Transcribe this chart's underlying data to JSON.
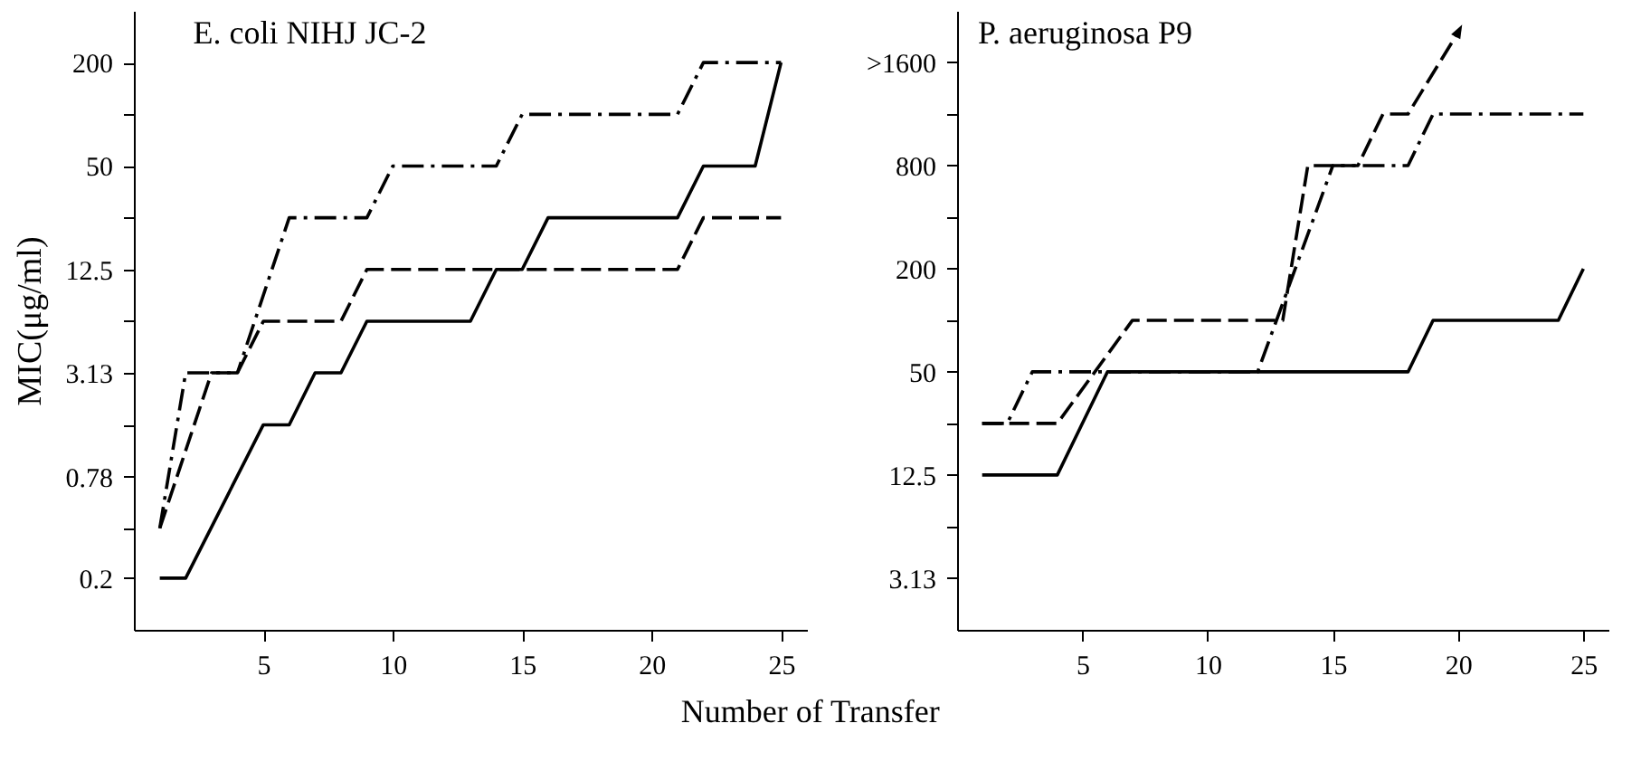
{
  "chart_data": [
    {
      "type": "line",
      "title": "E. coli  NIHJ JC-2",
      "ylabel": "MIC(μg/ml)",
      "xlabel": "Number of Transfer",
      "log": "y",
      "xlim": [
        0,
        26
      ],
      "xticks": [
        5,
        10,
        15,
        20,
        25
      ],
      "ylim": [
        0.1,
        400
      ],
      "yticks": [
        0.2,
        {
          "value": 0.39,
          "label": null
        },
        0.78,
        {
          "value": 1.56,
          "label": null
        },
        3.13,
        {
          "value": 6.25,
          "label": null
        },
        12.5,
        {
          "value": 25,
          "label": null
        },
        50,
        {
          "value": 100,
          "label": null
        },
        200
      ],
      "series": [
        {
          "color": "#000000",
          "line_style": "solid",
          "x": [
            1,
            2,
            5,
            6,
            7,
            8,
            9,
            13,
            14,
            15,
            16,
            21,
            22,
            24,
            25
          ],
          "values": [
            0.2,
            0.2,
            1.56,
            1.56,
            3.13,
            3.13,
            6.25,
            6.25,
            12.5,
            12.5,
            25,
            25,
            50,
            50,
            200
          ]
        },
        {
          "color": "#000000",
          "line_style": "dashed",
          "x": [
            1,
            3,
            4,
            5,
            8,
            9,
            21,
            22,
            25
          ],
          "values": [
            0.39,
            3.13,
            3.13,
            6.25,
            6.25,
            12.5,
            12.5,
            25,
            25
          ]
        },
        {
          "color": "#000000",
          "line_style": "dashdot",
          "x": [
            1,
            2,
            4,
            6,
            9,
            10,
            14,
            15,
            21,
            22,
            25
          ],
          "values": [
            0.39,
            3.13,
            3.13,
            25,
            25,
            50,
            50,
            100,
            100,
            200,
            200
          ]
        }
      ]
    },
    {
      "type": "line",
      "title": "P. aeruginosa  P9",
      "log": "y",
      "xlim": [
        0,
        26
      ],
      "xticks": [
        5,
        10,
        15,
        20,
        25
      ],
      "ylim": [
        1.56,
        6400
      ],
      "yticks": [
        3.13,
        {
          "value": 6.25,
          "label": null
        },
        12.5,
        {
          "value": 25,
          "label": null
        },
        50,
        {
          "value": 100,
          "label": null
        },
        200,
        {
          "value": 400,
          "label": null
        },
        800,
        {
          "value": 1600,
          "label": null
        },
        {
          "value": 3200,
          "label": ">1600"
        }
      ],
      "series": [
        {
          "color": "#000000",
          "line_style": "solid",
          "x": [
            1,
            4,
            6,
            18,
            19,
            24,
            25
          ],
          "values": [
            12.5,
            12.5,
            50,
            50,
            100,
            100,
            200
          ]
        },
        {
          "color": "#000000",
          "line_style": "dashed",
          "x": [
            1,
            4,
            7,
            13,
            14,
            16,
            17,
            18,
            20
          ],
          "values": [
            25,
            25,
            100,
            100,
            800,
            800,
            1600,
            1600,
            4800
          ]
        },
        {
          "color": "#000000",
          "line_style": "dashdot",
          "x": [
            1,
            2,
            3,
            12,
            15,
            18,
            19,
            25
          ],
          "values": [
            25,
            25,
            50,
            50,
            800,
            800,
            1600,
            1600
          ]
        }
      ]
    }
  ]
}
